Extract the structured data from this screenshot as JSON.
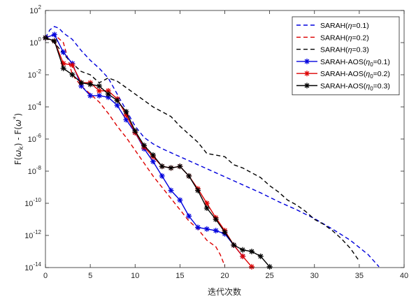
{
  "chart_data": {
    "type": "line",
    "title": "",
    "xlabel": "迭代次数",
    "ylabel": "F(ω_k) - F(ω^*)",
    "ylabel_parts": {
      "f1": "F(",
      "w1": "ω",
      "sub": "k",
      "mid": ") - F(",
      "w2": "ω",
      "sup": "*",
      "end": ")"
    },
    "xlim": [
      0,
      40
    ],
    "ylim_log10": [
      -14,
      2
    ],
    "yscale": "log",
    "grid": false,
    "legend_position": "top-right",
    "x_ticks": [
      0,
      5,
      10,
      15,
      20,
      25,
      30,
      35,
      40
    ],
    "x_tick_labels": [
      "0",
      "5",
      "10",
      "15",
      "20",
      "25",
      "30",
      "35",
      "40"
    ],
    "y_ticks_log10": [
      2,
      0,
      -2,
      -4,
      -6,
      -8,
      -10,
      -12,
      -14
    ],
    "y_tick_exponents": [
      "2",
      "0",
      "-2",
      "-4",
      "-6",
      "-8",
      "-10",
      "-12",
      "-14"
    ],
    "y_tick_base": "10",
    "series": [
      {
        "legend": {
          "pre": "SARAH(",
          "greek": "η",
          "sub": "",
          "post": "=0.1)"
        },
        "color": "#0000dd",
        "dash": "dashed",
        "marker": "none",
        "x": [
          0,
          0.5,
          1,
          1.5,
          2,
          3,
          4,
          5,
          6,
          7,
          8,
          9,
          10,
          11,
          12,
          13,
          14,
          15,
          16,
          17,
          18,
          19,
          20,
          22,
          24,
          26,
          28,
          30,
          32,
          34,
          36,
          37.2
        ],
        "log10_y": [
          0.3,
          0.8,
          1.0,
          0.9,
          0.6,
          0.2,
          -0.5,
          -1.1,
          -1.6,
          -2.2,
          -3.2,
          -4.2,
          -5.2,
          -5.9,
          -6.3,
          -6.6,
          -6.85,
          -7.1,
          -7.35,
          -7.6,
          -7.85,
          -8.1,
          -8.35,
          -8.85,
          -9.35,
          -9.9,
          -10.4,
          -10.95,
          -11.6,
          -12.3,
          -13.2,
          -13.95
        ]
      },
      {
        "legend": {
          "pre": "SARAH(",
          "greek": "η",
          "sub": "",
          "post": "=0.2)"
        },
        "color": "#dd0000",
        "dash": "dashed",
        "marker": "none",
        "x": [
          0,
          1,
          2,
          2.5,
          3,
          4,
          5,
          6,
          7,
          8,
          9,
          10,
          11,
          12,
          13,
          14,
          15,
          16,
          17,
          18,
          19,
          19.5,
          20
        ],
        "log10_y": [
          0.3,
          0.5,
          0.0,
          -1.0,
          -2.0,
          -2.7,
          -3.2,
          -3.7,
          -4.4,
          -5.2,
          -5.9,
          -6.7,
          -7.5,
          -8.3,
          -9.0,
          -9.7,
          -10.4,
          -11.1,
          -11.6,
          -12.3,
          -12.7,
          -13.2,
          -13.9
        ]
      },
      {
        "legend": {
          "pre": "SARAH(",
          "greek": "η",
          "sub": "",
          "post": "=0.3)"
        },
        "color": "#000000",
        "dash": "dashed",
        "marker": "none",
        "x": [
          0,
          1,
          2,
          3,
          4,
          5,
          6,
          7,
          8,
          9,
          10,
          11,
          12,
          13,
          14,
          15,
          16,
          17,
          18,
          19,
          20,
          21,
          22,
          23,
          24,
          25,
          26,
          27,
          28,
          29,
          30,
          31,
          32,
          33,
          34,
          35
        ],
        "log10_y": [
          0.3,
          0.0,
          -0.7,
          -1.3,
          -1.8,
          -2.0,
          -2.5,
          -2.2,
          -2.4,
          -2.8,
          -3.2,
          -3.6,
          -4.0,
          -4.3,
          -4.6,
          -5.2,
          -5.7,
          -6.2,
          -6.9,
          -7.0,
          -7.1,
          -7.6,
          -7.8,
          -8.1,
          -8.4,
          -8.9,
          -9.3,
          -9.8,
          -10.1,
          -10.5,
          -11.0,
          -11.3,
          -11.7,
          -12.2,
          -12.8,
          -13.6
        ]
      },
      {
        "legend": {
          "pre": "SARAH-AOS(",
          "greek": "η",
          "sub": "0",
          "post": "=0.1)"
        },
        "color": "#0000dd",
        "dash": "solid",
        "marker": "star",
        "x": [
          0,
          1,
          2,
          3,
          4,
          5,
          6,
          7,
          8,
          9,
          10,
          11,
          12,
          13,
          14,
          15,
          16,
          17,
          18,
          19,
          20,
          21,
          22
        ],
        "log10_y": [
          0.3,
          0.5,
          -0.6,
          -1.3,
          -2.7,
          -3.3,
          -3.3,
          -3.4,
          -3.9,
          -4.8,
          -5.6,
          -6.6,
          -7.4,
          -8.3,
          -9.2,
          -9.8,
          -10.8,
          -11.5,
          -11.6,
          -11.7,
          -11.9,
          -12.6,
          -13.3
        ]
      },
      {
        "legend": {
          "pre": "SARAH-AOS(",
          "greek": "η",
          "sub": "0",
          "post": "=0.2)"
        },
        "color": "#dd0000",
        "dash": "solid",
        "marker": "star",
        "x": [
          0,
          1,
          2,
          3,
          4,
          5,
          6,
          7,
          8,
          9,
          10,
          11,
          12,
          13,
          14,
          15,
          16,
          17,
          18,
          19,
          20,
          21,
          22,
          23
        ],
        "log10_y": [
          0.3,
          0.1,
          -1.3,
          -1.4,
          -2.5,
          -2.5,
          -3.0,
          -3.0,
          -3.5,
          -4.5,
          -5.6,
          -6.5,
          -7.1,
          -7.7,
          -7.8,
          -7.7,
          -8.3,
          -9.1,
          -10.0,
          -10.9,
          -11.7,
          -12.6,
          -13.3,
          -13.95
        ]
      },
      {
        "legend": {
          "pre": "SARAH-AOS(",
          "greek": "η",
          "sub": "0",
          "post": "=0.3)"
        },
        "color": "#000000",
        "dash": "solid",
        "marker": "star",
        "x": [
          0,
          1,
          2,
          3,
          4,
          5,
          6,
          7,
          8,
          9,
          10,
          11,
          12,
          13,
          14,
          15,
          16,
          17,
          18,
          19,
          20,
          21,
          22,
          23,
          24,
          25
        ],
        "log10_y": [
          0.3,
          0.1,
          -1.6,
          -2.0,
          -2.5,
          -2.6,
          -2.7,
          -3.2,
          -3.6,
          -4.3,
          -5.5,
          -6.4,
          -7.0,
          -7.7,
          -7.8,
          -7.7,
          -8.3,
          -9.2,
          -10.3,
          -11.0,
          -11.8,
          -12.6,
          -12.9,
          -13.0,
          -13.3,
          -13.95
        ]
      }
    ]
  }
}
